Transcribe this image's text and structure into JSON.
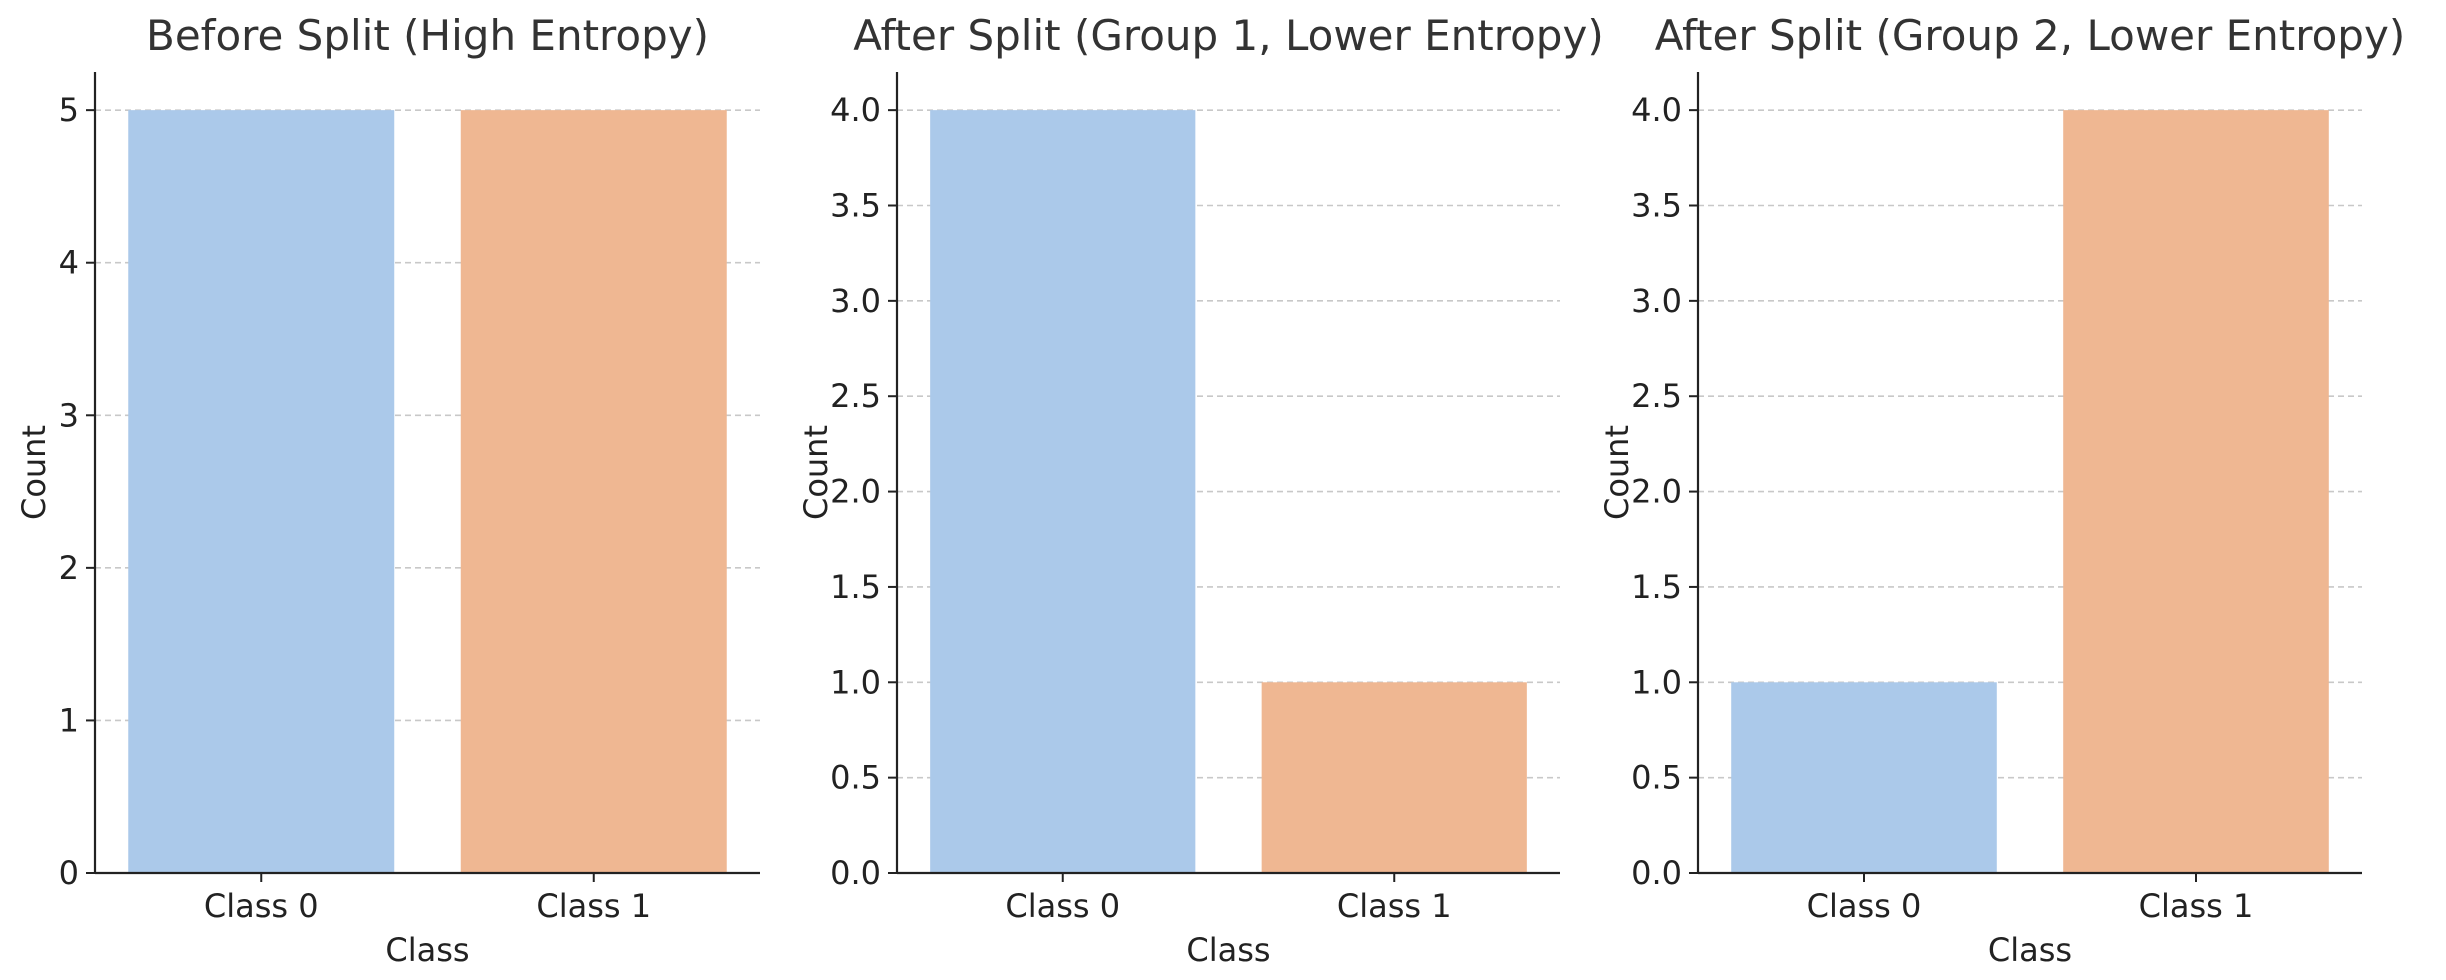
{
  "chart_data": [
    {
      "type": "bar",
      "title": "Before Split (High Entropy)",
      "xlabel": "Class",
      "ylabel": "Count",
      "categories": [
        "Class 0",
        "Class 1"
      ],
      "values": [
        5,
        5
      ],
      "colors": [
        "#abc9ea",
        "#efb792"
      ],
      "ylim": [
        0,
        5.25
      ],
      "yticks": [
        0,
        1,
        2,
        3,
        4,
        5
      ],
      "ytick_labels": [
        "0",
        "1",
        "2",
        "3",
        "4",
        "5"
      ],
      "grid": "y-dashed"
    },
    {
      "type": "bar",
      "title": "After Split (Group 1, Lower Entropy)",
      "xlabel": "Class",
      "ylabel": "Count",
      "categories": [
        "Class 0",
        "Class 1"
      ],
      "values": [
        4,
        1
      ],
      "colors": [
        "#abc9ea",
        "#efb792"
      ],
      "ylim": [
        0,
        4.2
      ],
      "yticks": [
        0,
        0.5,
        1,
        1.5,
        2,
        2.5,
        3,
        3.5,
        4
      ],
      "ytick_labels": [
        "0.0",
        "0.5",
        "1.0",
        "1.5",
        "2.0",
        "2.5",
        "3.0",
        "3.5",
        "4.0"
      ],
      "grid": "y-dashed"
    },
    {
      "type": "bar",
      "title": "After Split (Group 2, Lower Entropy)",
      "xlabel": "Class",
      "ylabel": "Count",
      "categories": [
        "Class 0",
        "Class 1"
      ],
      "values": [
        1,
        4
      ],
      "colors": [
        "#abc9ea",
        "#efb792"
      ],
      "ylim": [
        0,
        4.2
      ],
      "yticks": [
        0,
        0.5,
        1,
        1.5,
        2,
        2.5,
        3,
        3.5,
        4
      ],
      "ytick_labels": [
        "0.0",
        "0.5",
        "1.0",
        "1.5",
        "2.0",
        "2.5",
        "3.0",
        "3.5",
        "4.0"
      ],
      "grid": "y-dashed"
    }
  ]
}
